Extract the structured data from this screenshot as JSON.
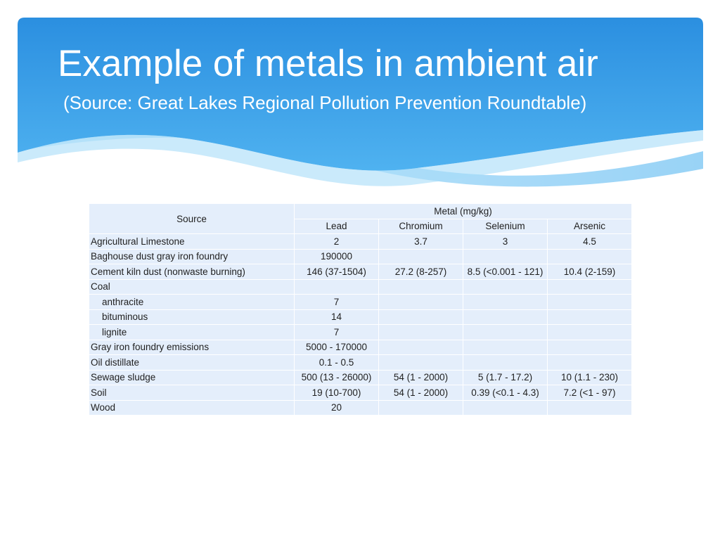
{
  "slide": {
    "title": "Example of metals in ambient air",
    "subtitle": "(Source: Great Lakes Regional Pollution Prevention Roundtable)"
  },
  "colors": {
    "header_blue": "#2b93e2",
    "header_light_blue": "#8fd0f7",
    "table_cell": "#e4eefb",
    "text": "#1f1f1f"
  },
  "table": {
    "source_header": "Source",
    "metal_header": "Metal (mg/kg)",
    "metals": [
      "Lead",
      "Chromium",
      "Selenium",
      "Arsenic"
    ],
    "rows": [
      {
        "source": "Agricultural Limestone",
        "values": [
          "2",
          "3.7",
          "3",
          "4.5"
        ]
      },
      {
        "source": "Baghouse dust gray iron foundry",
        "values": [
          "190000",
          "",
          "",
          ""
        ]
      },
      {
        "source": "Cement kiln dust (nonwaste burning)",
        "values": [
          "146 (37-1504)",
          "27.2 (8-257)",
          "8.5 (<0.001 - 121)",
          "10.4 (2-159)"
        ]
      },
      {
        "source": "Coal",
        "values": [
          "",
          "",
          "",
          ""
        ]
      },
      {
        "source": "anthracite",
        "indent": true,
        "values": [
          "7",
          "",
          "",
          ""
        ]
      },
      {
        "source": "bituminous",
        "indent": true,
        "values": [
          "14",
          "",
          "",
          ""
        ]
      },
      {
        "source": "lignite",
        "indent": true,
        "values": [
          "7",
          "",
          "",
          ""
        ]
      },
      {
        "source": "Gray iron foundry emissions",
        "values": [
          "5000 - 170000",
          "",
          "",
          ""
        ]
      },
      {
        "source": "Oil distillate",
        "values": [
          "0.1 - 0.5",
          "",
          "",
          ""
        ]
      },
      {
        "source": "Sewage sludge",
        "values": [
          "500 (13 - 26000)",
          "54 (1 - 2000)",
          "5 (1.7 - 17.2)",
          "10 (1.1 - 230)"
        ]
      },
      {
        "source": "Soil",
        "values": [
          "19 (10-700)",
          "54 (1 - 2000)",
          "0.39 (<0.1 - 4.3)",
          "7.2 (<1 - 97)"
        ]
      },
      {
        "source": "Wood",
        "values": [
          "20",
          "",
          "",
          ""
        ]
      }
    ]
  }
}
